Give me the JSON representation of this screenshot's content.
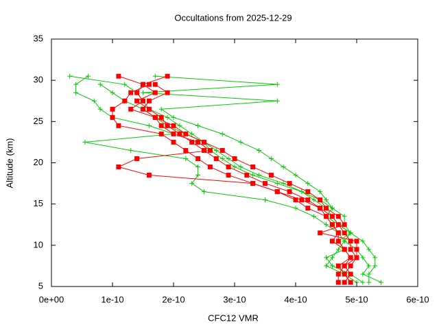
{
  "chart_data": {
    "type": "line",
    "title": "Occultations from 2025-12-29",
    "x_label": "CFC12 VMR",
    "y_label": "Altitude (km)",
    "xlim": [
      0,
      6e-10
    ],
    "ylim": [
      5,
      35
    ],
    "xticks": [
      {
        "value": 0,
        "label": "0e+00"
      },
      {
        "value": 1e-10,
        "label": "1e-10"
      },
      {
        "value": 2e-10,
        "label": "2e-10"
      },
      {
        "value": 3e-10,
        "label": "3e-10"
      },
      {
        "value": 4e-10,
        "label": "4e-10"
      },
      {
        "value": 5e-10,
        "label": "5e-10"
      },
      {
        "value": 6e-10,
        "label": "6e-10"
      }
    ],
    "yticks": [
      5,
      10,
      15,
      20,
      25,
      30,
      35
    ],
    "series": [
      {
        "color": "#00cc00",
        "marker": "plus",
        "x": [
          3e-11,
          1.2e-10,
          1.4e-10,
          1.5e-10,
          1.6e-10,
          1.9e-10,
          2.1e-10,
          2.3e-10,
          2.5e-10,
          2.7e-10,
          2.9e-10,
          3.1e-10,
          3.4e-10,
          3.8e-10,
          4.1e-10,
          4.3e-10,
          4.5e-10,
          4.6e-10,
          4.7e-10,
          4.9e-10,
          5.1e-10,
          5.2e-10,
          5.3e-10,
          5.3e-10,
          5.2e-10,
          5.2e-10
        ],
        "values": [
          30.5,
          29.5,
          28.5,
          27.5,
          26.5,
          25.5,
          24.5,
          23.5,
          22.5,
          21.5,
          20.5,
          19.5,
          18.5,
          17.5,
          16.5,
          15.5,
          14.5,
          13.5,
          12.5,
          11.5,
          10.5,
          9.5,
          8.5,
          7.5,
          6.5,
          5.5
        ]
      },
      {
        "color": "#00cc00",
        "marker": "plus",
        "x": [
          1.7e-10,
          3.7e-10,
          1.5e-10,
          3.7e-10,
          1.8e-10,
          2e-10,
          2.4e-10,
          2.8e-10,
          3.1e-10,
          3.4e-10,
          3.6e-10,
          3.8e-10,
          4e-10,
          4.2e-10,
          4.4e-10,
          4.5e-10,
          4.6e-10,
          4.5e-10,
          4.7e-10,
          4.9e-10,
          4.8e-10,
          4.7e-10,
          4.6e-10,
          4.5e-10,
          4.8e-10,
          5e-10
        ],
        "values": [
          30.5,
          29.5,
          28.5,
          27.5,
          26.5,
          25.5,
          24.5,
          23.5,
          22.5,
          21.5,
          20.5,
          19.5,
          18.5,
          17.5,
          16.5,
          15.5,
          14.5,
          13.5,
          12.5,
          11.5,
          10.5,
          9.5,
          8.5,
          7.5,
          6.5,
          5.5
        ]
      },
      {
        "color": "#00cc00",
        "marker": "plus",
        "x": [
          6e-11,
          4e-11,
          4e-11,
          7e-11,
          8e-11,
          1e-10,
          1.6e-10,
          2e-10,
          5.5e-11,
          1.3e-10,
          2.2e-10,
          2.4e-10,
          2.4e-10,
          2.3e-10,
          2.5e-10,
          3.5e-10,
          4e-10,
          4.3e-10,
          4.5e-10,
          4.7e-10,
          4.8e-10,
          5e-10,
          5.1e-10,
          5.2e-10,
          5.1e-10,
          5.4e-10
        ],
        "values": [
          30.5,
          29.5,
          28.5,
          27.5,
          26.5,
          25.5,
          24.5,
          23.5,
          22.5,
          21.5,
          20.5,
          19.5,
          18.5,
          17.5,
          16.5,
          15.5,
          14.5,
          13.5,
          12.5,
          11.5,
          10.5,
          9.5,
          8.5,
          7.5,
          6.5,
          5.5
        ]
      },
      {
        "color": "#00cc00",
        "marker": "plus",
        "x": [
          8e-11,
          1e-10,
          1.2e-10,
          1.5e-10,
          1.7e-10,
          1.9e-10,
          2.2e-10,
          2.5e-10,
          2.6e-10,
          2.8e-10,
          3e-10,
          3.3e-10,
          3.7e-10,
          4.1e-10,
          4.4e-10,
          4.6e-10,
          4.8e-10,
          4.8e-10,
          4.9e-10,
          4.7e-10,
          4.8e-10,
          4.5e-10,
          4.6e-10,
          4.9e-10,
          5.1e-10
        ],
        "values": [
          29.5,
          28.5,
          27.5,
          26.5,
          25.5,
          24.5,
          23.5,
          22.5,
          21.5,
          20.5,
          19.5,
          18.5,
          17.5,
          16.5,
          15.5,
          14.5,
          13.5,
          12.5,
          11.5,
          10.5,
          9.5,
          8.5,
          7.5,
          6.5,
          5.5
        ]
      },
      {
        "color": "#ff0000",
        "marker": "square",
        "x": [
          1.1e-10,
          1.5e-10,
          1.7e-10,
          1.4e-10,
          1.6e-10,
          1.8e-10,
          1.9e-10,
          2.1e-10,
          2.3e-10,
          2.5e-10,
          2.7e-10,
          2.9e-10,
          3.2e-10,
          3.5e-10,
          3.9e-10,
          4.2e-10,
          4.4e-10,
          4.6e-10,
          4.7e-10,
          4.8e-10,
          4.9e-10,
          4.9e-10,
          5e-10,
          4.8e-10,
          4.7e-10,
          4.7e-10
        ],
        "values": [
          30.5,
          29.5,
          28.5,
          27.5,
          26.5,
          25.5,
          24.5,
          23.5,
          22.5,
          21.5,
          20.5,
          19.5,
          18.5,
          17.5,
          16.5,
          15.5,
          14.5,
          13.5,
          12.5,
          11.5,
          10.5,
          9.5,
          8.5,
          7.5,
          6.5,
          5.5
        ]
      },
      {
        "color": "#ff0000",
        "marker": "square",
        "x": [
          1.6e-10,
          1.3e-10,
          1.2e-10,
          1e-10,
          1e-10,
          1.1e-10,
          1.8e-10,
          2e-10,
          2.2e-10,
          2.4e-10,
          2.6e-10,
          2.9e-10,
          3.3e-10,
          3.7e-10,
          4.1e-10,
          4.4e-10,
          4.5e-10,
          4.6e-10,
          4.7e-10,
          4.6e-10,
          4.8e-10,
          4.9e-10,
          4.8e-10,
          4.9e-10,
          4.8e-10
        ],
        "values": [
          29.5,
          28.5,
          27.5,
          26.5,
          25.5,
          24.5,
          23.5,
          22.5,
          21.5,
          20.5,
          19.5,
          18.5,
          17.5,
          16.5,
          15.5,
          14.5,
          13.5,
          12.5,
          11.5,
          10.5,
          9.5,
          8.5,
          7.5,
          6.5,
          5.5
        ]
      },
      {
        "color": "#ff0000",
        "marker": "square",
        "x": [
          1.9e-10,
          1.5e-10,
          1.4e-10,
          1.5e-10,
          1.3e-10,
          1.7e-10,
          1.8e-10,
          2e-10,
          2.4e-10,
          2.6e-10,
          1.4e-10,
          1.1e-10,
          1.6e-10,
          3.3e-10,
          3.7e-10,
          4e-10,
          4.2e-10,
          4.5e-10,
          4.6e-10,
          4.7e-10,
          4.7e-10,
          4.8e-10,
          4.9e-10,
          4.7e-10,
          4.8e-10,
          4.9e-10
        ],
        "values": [
          30.5,
          29.5,
          28.5,
          27.5,
          26.5,
          25.5,
          24.5,
          23.5,
          22.5,
          21.5,
          20.5,
          19.5,
          18.5,
          17.5,
          16.5,
          15.5,
          14.5,
          13.5,
          12.5,
          11.5,
          10.5,
          9.5,
          8.5,
          7.5,
          6.5,
          5.5
        ]
      },
      {
        "color": "#ff0000",
        "marker": "square",
        "x": [
          1.7e-10,
          1.9e-10,
          1.6e-10,
          1.5e-10,
          1.7e-10,
          2e-10,
          2.2e-10,
          2.5e-10,
          2.8e-10,
          3e-10,
          3.3e-10,
          3.6e-10,
          3.9e-10,
          4.2e-10,
          4.4e-10,
          4.5e-10,
          4.7e-10,
          4.8e-10,
          4.4e-10,
          5e-10,
          5e-10,
          5e-10,
          4.9e-10,
          4.8e-10,
          4.9e-10
        ],
        "values": [
          29.5,
          28.5,
          27.5,
          26.5,
          25.5,
          24.5,
          23.5,
          22.5,
          21.5,
          20.5,
          19.5,
          18.5,
          17.5,
          16.5,
          15.5,
          14.5,
          13.5,
          12.5,
          11.5,
          10.5,
          9.5,
          8.5,
          7.5,
          6.5,
          5.5
        ]
      }
    ]
  }
}
